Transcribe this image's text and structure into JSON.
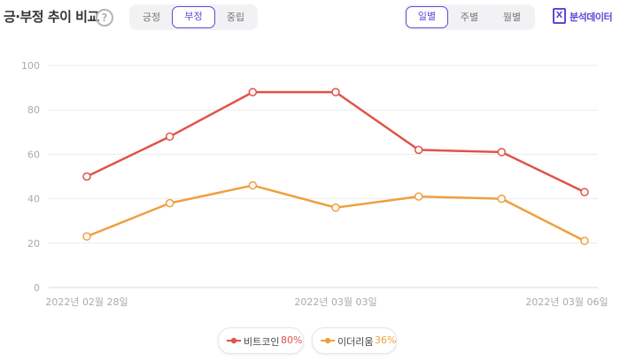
{
  "header": {
    "title": "긍·부정 추이 비교",
    "help_icon": "question-circle-icon",
    "help_symbol": "?",
    "sentiment_tabs": [
      {
        "label": "긍정",
        "active": false
      },
      {
        "label": "부정",
        "active": true
      },
      {
        "label": "중립",
        "active": false
      }
    ],
    "period_tabs": [
      {
        "label": "일별",
        "active": true
      },
      {
        "label": "주별",
        "active": false
      },
      {
        "label": "월별",
        "active": false
      }
    ],
    "excel_icon": "excel-icon",
    "excel_symbol": "X",
    "download_label": "분석데이터"
  },
  "chart_data": {
    "type": "line",
    "x_tick_labels": [
      "2022년 02월 28일",
      "2022년 03월 03일",
      "2022년 03월 06일"
    ],
    "ylim": [
      0,
      100
    ],
    "y_ticks": [
      "0",
      "20",
      "40",
      "60",
      "80",
      "100"
    ],
    "grid": true,
    "legend_position": "bottom-center",
    "series": [
      {
        "name": "비트코인",
        "percent": "80%",
        "color": "#e0534a",
        "values": [
          50,
          68,
          88,
          88,
          62,
          61,
          43
        ]
      },
      {
        "name": "이더리움",
        "percent": "36%",
        "color": "#eea03f",
        "values": [
          23,
          38,
          46,
          36,
          41,
          40,
          21
        ]
      }
    ]
  }
}
